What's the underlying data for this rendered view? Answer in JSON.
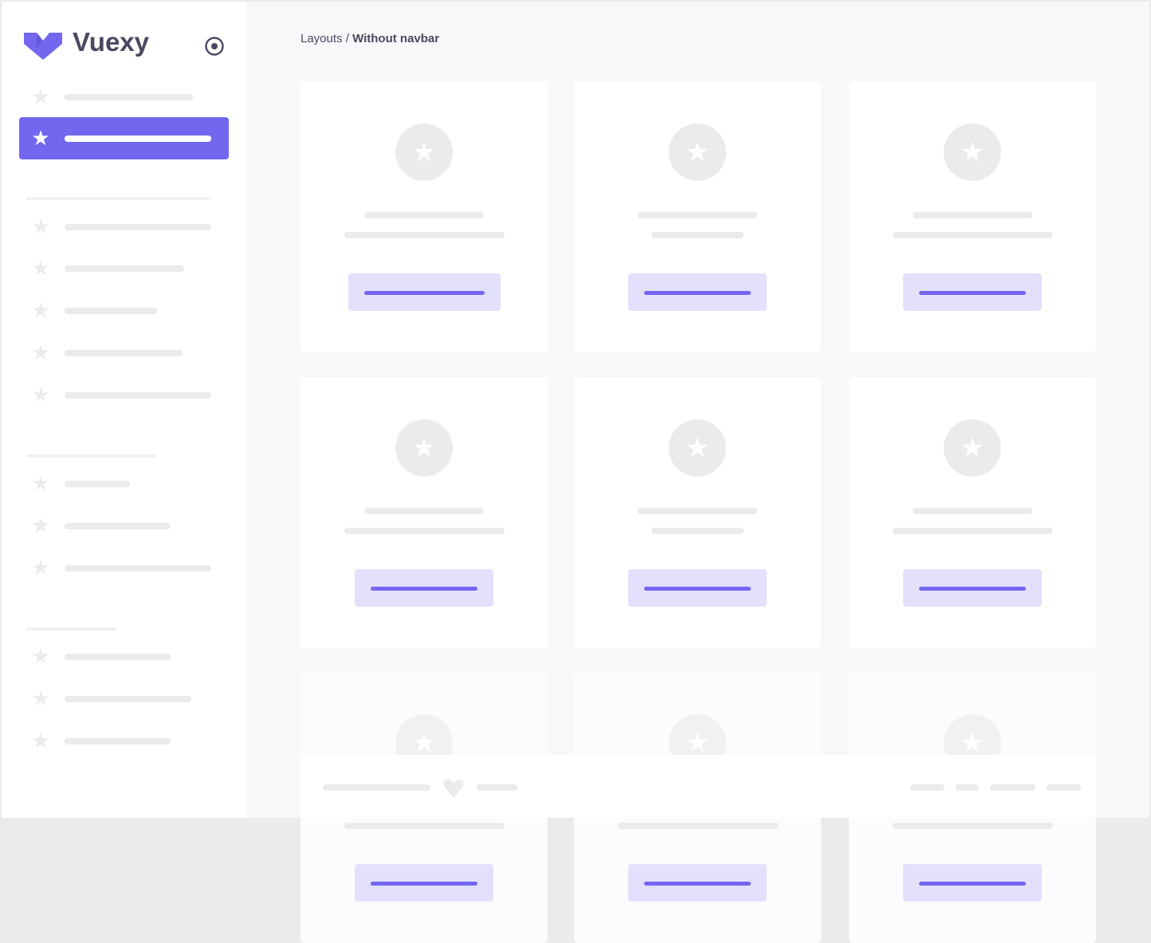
{
  "brand": {
    "name": "Vuexy",
    "accent": "#7367f0",
    "accent_light": "#e3e0fc"
  },
  "sidebar": {
    "toggle_icon": "radio-circle-icon",
    "item_icon": "star-icon"
  },
  "breadcrumb": {
    "parent": "Layouts",
    "separator": "/",
    "current": "Without navbar"
  },
  "footer": {
    "icon": "heart-icon"
  }
}
